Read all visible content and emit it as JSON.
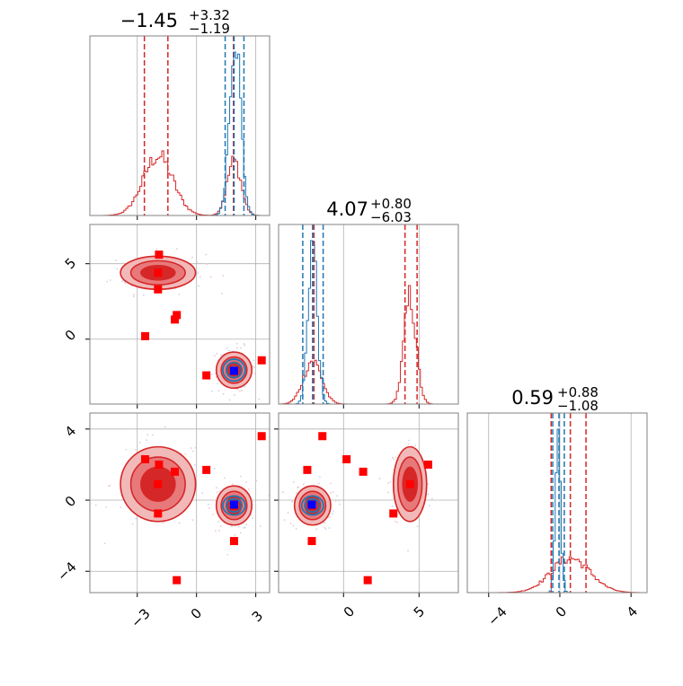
{
  "colors": {
    "red": "#d62728",
    "blue": "#1f77b4",
    "marker_red": "#ff0000",
    "marker_blue": "#0000ff",
    "grid": "#b0b0b0",
    "fill_light": "#f2b9b9",
    "fill_mid": "#e8797a",
    "fill_dark": "#d62728"
  },
  "titles": {
    "p1": {
      "main": "−1.45",
      "sup": "+3.32",
      "sub": "−1.19"
    },
    "p2": {
      "main": "4.07",
      "sup": "+0.80",
      "sub": "−6.03"
    },
    "p3": {
      "main": "0.59",
      "sup": "+0.88",
      "sub": "−1.08"
    }
  },
  "ticks": {
    "p1_x": [
      "−3",
      "0",
      "3"
    ],
    "p2_x": [
      "0",
      "5"
    ],
    "p3_x": [
      "−4",
      "0",
      "4"
    ],
    "p2_y": [
      "0",
      "5"
    ],
    "p3_y": [
      "−4",
      "0",
      "4"
    ]
  },
  "chart_data": {
    "type": "corner",
    "params": [
      {
        "id": "p1",
        "range": [
          -5.4,
          3.7
        ],
        "ticks": [
          -3,
          0,
          3
        ],
        "median": -1.45,
        "plus": 3.32,
        "minus": 1.19,
        "red_lines": [
          -2.64,
          -1.45,
          1.87
        ],
        "blue_lines": [
          1.45,
          1.9,
          2.4
        ],
        "red_hist_modes": [
          {
            "mu": -1.95,
            "sigma": 0.75,
            "w": 0.7
          },
          {
            "mu": 1.9,
            "sigma": 0.35,
            "w": 0.3
          }
        ],
        "blue_hist_modes": [
          {
            "mu": 1.95,
            "sigma": 0.28,
            "w": 1.0
          }
        ]
      },
      {
        "id": "p2",
        "range": [
          -4.3,
          7.6
        ],
        "ticks": [
          0,
          5
        ],
        "median": 4.07,
        "plus": 0.8,
        "minus": 6.03,
        "red_lines": [
          -1.96,
          4.07,
          4.87
        ],
        "blue_lines": [
          -2.7,
          -2.05,
          -1.35
        ],
        "red_hist_modes": [
          {
            "mu": 4.4,
            "sigma": 0.4,
            "w": 0.62
          },
          {
            "mu": -2.05,
            "sigma": 0.6,
            "w": 0.38
          }
        ],
        "blue_hist_modes": [
          {
            "mu": -2.05,
            "sigma": 0.3,
            "w": 1.0
          }
        ]
      },
      {
        "id": "p3",
        "range": [
          -5.2,
          4.9
        ],
        "ticks": [
          -4,
          0,
          4
        ],
        "median": 0.59,
        "plus": 0.88,
        "minus": 1.08,
        "red_lines": [
          -0.49,
          0.59,
          1.47
        ],
        "blue_lines": [
          -0.4,
          -0.05,
          0.25
        ],
        "red_hist_modes": [
          {
            "mu": 0.6,
            "sigma": 1.1,
            "w": 1.0
          }
        ],
        "blue_hist_modes": [
          {
            "mu": -0.1,
            "sigma": 0.15,
            "w": 1.0
          }
        ]
      }
    ],
    "clusters": [
      {
        "p1": -1.95,
        "p2": 4.4,
        "p3": 0.9,
        "s1": 0.95,
        "s2": 0.55,
        "s3": 1.05
      },
      {
        "p1": 1.9,
        "p2": -2.05,
        "p3": -0.3,
        "s1": 0.45,
        "s2": 0.6,
        "s3": 0.55
      }
    ],
    "blue_cluster": {
      "p1": 1.9,
      "p2": -2.05,
      "p3": -0.3,
      "s1": 0.3,
      "s2": 0.38,
      "s3": 0.28
    },
    "red_points": [
      {
        "p1": -1.9,
        "p2": 5.6,
        "p3": 2.0
      },
      {
        "p1": -1.95,
        "p2": 4.4,
        "p3": 0.9
      },
      {
        "p1": -1.1,
        "p2": 1.3,
        "p3": 1.6
      },
      {
        "p1": -2.6,
        "p2": 0.2,
        "p3": 2.3
      },
      {
        "p1": -1.95,
        "p2": 3.3,
        "p3": -0.75
      },
      {
        "p1": 0.5,
        "p2": -2.4,
        "p3": 1.7
      },
      {
        "p1": 3.3,
        "p2": -1.4,
        "p3": 3.6
      },
      {
        "p1": 1.9,
        "p2": -2.1,
        "p3": -2.3
      },
      {
        "p1": -1.0,
        "p2": 1.6,
        "p3": -4.5
      },
      {
        "p1": 1.9,
        "p2": -2.1,
        "p3": -0.3
      }
    ],
    "truth_points": [
      {
        "p1": 1.9,
        "p2": -2.1,
        "p3": -0.25
      }
    ]
  }
}
